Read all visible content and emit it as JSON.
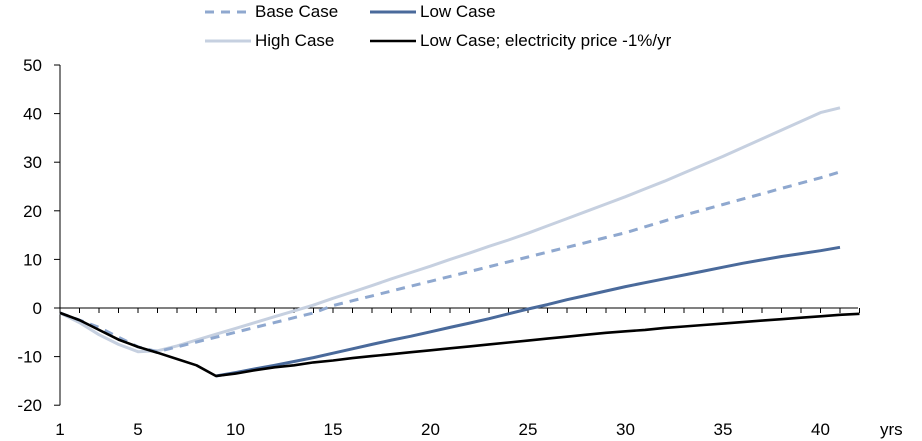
{
  "chart_data": {
    "type": "line",
    "title": "",
    "xlabel": "yrs",
    "ylabel": "",
    "xlim": [
      1,
      42
    ],
    "ylim": [
      -20,
      50
    ],
    "x_ticks": [
      1,
      5,
      10,
      15,
      20,
      25,
      30,
      35,
      40
    ],
    "y_ticks": [
      -20,
      -10,
      0,
      10,
      20,
      30,
      40,
      50
    ],
    "grid": false,
    "legend_position": "top",
    "series": [
      {
        "name": "Base Case",
        "color": "#8fa8cf",
        "style": "dashed",
        "x": [
          1,
          2,
          3,
          4,
          5,
          6,
          7,
          8,
          9,
          10,
          11,
          12,
          13,
          14,
          15,
          16,
          17,
          18,
          19,
          20,
          21,
          22,
          23,
          24,
          25,
          26,
          27,
          28,
          29,
          30,
          31,
          32,
          33,
          34,
          35,
          36,
          37,
          38,
          39,
          40,
          41
        ],
        "values": [
          -1,
          -2.5,
          -4,
          -6,
          -8,
          -9,
          -8,
          -7,
          -6,
          -5,
          -4,
          -3,
          -2,
          -1,
          0.5,
          1.5,
          2.5,
          3.5,
          4.5,
          5.5,
          6.5,
          7.5,
          8.5,
          9.5,
          10.5,
          11.5,
          12.5,
          13.5,
          14.5,
          15.5,
          16.7,
          17.9,
          19.1,
          20.2,
          21.3,
          22.4,
          23.5,
          24.6,
          25.7,
          26.8,
          28
        ]
      },
      {
        "name": "Low Case",
        "color": "#4a6a9b",
        "style": "solid",
        "x": [
          9,
          10,
          11,
          12,
          13,
          14,
          15,
          16,
          17,
          18,
          19,
          20,
          21,
          22,
          23,
          24,
          25,
          26,
          27,
          28,
          29,
          30,
          31,
          32,
          33,
          34,
          35,
          36,
          37,
          38,
          39,
          40,
          41
        ],
        "values": [
          -14,
          -13.3,
          -12.5,
          -11.8,
          -11,
          -10.2,
          -9.3,
          -8.4,
          -7.5,
          -6.6,
          -5.8,
          -4.9,
          -4,
          -3.1,
          -2.2,
          -1.2,
          -0.2,
          0.7,
          1.7,
          2.6,
          3.5,
          4.4,
          5.2,
          6,
          6.8,
          7.6,
          8.4,
          9.2,
          9.9,
          10.6,
          11.2,
          11.8,
          12.5
        ]
      },
      {
        "name": "High Case",
        "color": "#c6d0e0",
        "style": "solid",
        "x": [
          1,
          2,
          3,
          4,
          5,
          6,
          7,
          8,
          9,
          10,
          11,
          12,
          13,
          14,
          15,
          16,
          17,
          18,
          19,
          20,
          21,
          22,
          23,
          24,
          25,
          26,
          27,
          28,
          29,
          30,
          31,
          32,
          33,
          34,
          35,
          36,
          37,
          38,
          39,
          40,
          41
        ],
        "values": [
          -1,
          -3,
          -5.5,
          -7.5,
          -9,
          -8.8,
          -7.8,
          -6.6,
          -5.4,
          -4.2,
          -3,
          -1.8,
          -0.6,
          0.6,
          2,
          3.3,
          4.6,
          6,
          7.3,
          8.6,
          10,
          11.3,
          12.7,
          14,
          15.4,
          16.9,
          18.4,
          19.9,
          21.4,
          22.9,
          24.5,
          26.1,
          27.8,
          29.5,
          31.2,
          33,
          34.8,
          36.6,
          38.4,
          40.2,
          41.2
        ]
      },
      {
        "name": "Low Case; electricity price -1%/yr",
        "color": "#000000",
        "style": "solid",
        "x": [
          1,
          2,
          3,
          4,
          5,
          6,
          7,
          8,
          9,
          10,
          11,
          12,
          13,
          14,
          15,
          16,
          17,
          18,
          19,
          20,
          21,
          22,
          23,
          24,
          25,
          26,
          27,
          28,
          29,
          30,
          31,
          32,
          33,
          34,
          35,
          36,
          37,
          38,
          39,
          40,
          41,
          42
        ],
        "values": [
          -1,
          -2.5,
          -4.5,
          -6.5,
          -8,
          -9.2,
          -10.5,
          -11.8,
          -14,
          -13.5,
          -12.8,
          -12.2,
          -11.8,
          -11.2,
          -10.8,
          -10.3,
          -9.9,
          -9.5,
          -9.1,
          -8.7,
          -8.3,
          -7.9,
          -7.5,
          -7.1,
          -6.7,
          -6.3,
          -5.9,
          -5.5,
          -5.1,
          -4.8,
          -4.5,
          -4.1,
          -3.8,
          -3.5,
          -3.2,
          -2.9,
          -2.6,
          -2.3,
          -2,
          -1.7,
          -1.4,
          -1.2
        ]
      }
    ]
  }
}
